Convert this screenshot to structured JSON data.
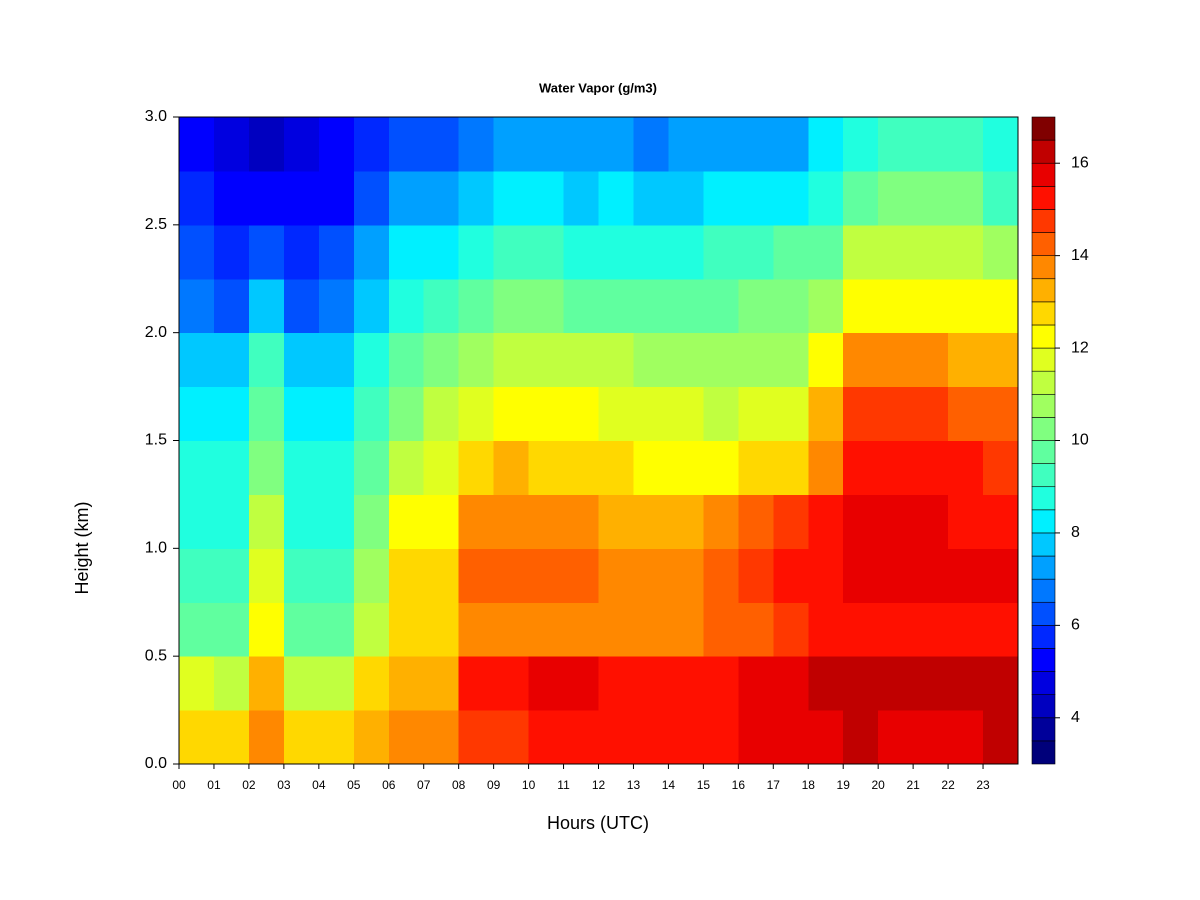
{
  "chart_data": {
    "type": "heatmap",
    "title": "Water Vapor (g/m3)",
    "xlabel": "Hours (UTC)",
    "ylabel": "Height (km)",
    "x": [
      0.5,
      1.5,
      2.5,
      3.5,
      4.5,
      5.5,
      6.5,
      7.5,
      8.5,
      9.5,
      10.5,
      11.5,
      12.5,
      13.5,
      14.5,
      15.5,
      16.5,
      17.5,
      18.5,
      19.5,
      20.5,
      21.5,
      22.5,
      23.5
    ],
    "y": [
      0.125,
      0.375,
      0.625,
      0.875,
      1.125,
      1.375,
      1.625,
      1.875,
      2.125,
      2.375,
      2.625,
      2.875
    ],
    "values": [
      [
        12.5,
        12.5,
        13.5,
        12.5,
        12.5,
        13,
        13.5,
        13.5,
        14.5,
        14.5,
        15,
        15,
        15,
        15,
        15,
        15,
        15.5,
        15.5,
        15.5,
        16,
        15.5,
        15.5,
        15.5,
        16
      ],
      [
        11.5,
        11,
        13,
        11,
        11,
        12.5,
        13,
        13,
        15,
        15,
        15.5,
        15.5,
        15,
        15,
        15,
        15,
        15.5,
        15.5,
        16,
        16,
        16,
        16,
        16,
        16
      ],
      [
        9.5,
        9.5,
        12,
        9.5,
        9.5,
        11,
        12.5,
        12.5,
        13.5,
        13.5,
        13.5,
        13.5,
        13.5,
        13.5,
        13.5,
        14,
        14,
        14.5,
        15,
        15,
        15,
        15,
        15,
        15
      ],
      [
        9,
        9,
        11.5,
        9,
        9,
        10.5,
        12.5,
        12.5,
        14,
        14,
        14,
        14,
        13.5,
        13.5,
        13.5,
        14,
        14.5,
        15,
        15,
        15.5,
        15.5,
        15.5,
        15.5,
        15.5
      ],
      [
        8.5,
        8.5,
        11,
        8.5,
        8.5,
        10,
        12,
        12,
        13.5,
        13.5,
        13.5,
        13.5,
        13,
        13,
        13,
        13.5,
        14,
        14.5,
        15,
        15.5,
        15.5,
        15.5,
        15,
        15
      ],
      [
        8.5,
        8.5,
        10,
        8.5,
        8.5,
        9.5,
        11,
        11.5,
        12.5,
        13,
        12.5,
        12.5,
        12.5,
        12,
        12,
        12,
        12.5,
        12.5,
        13.5,
        15,
        15,
        15,
        15,
        14.5
      ],
      [
        8,
        8,
        9.5,
        8,
        8,
        9,
        10,
        11,
        11.5,
        12,
        12,
        12,
        11.5,
        11.5,
        11.5,
        11,
        11.5,
        11.5,
        13,
        14.5,
        14.5,
        14.5,
        14,
        14
      ],
      [
        7.5,
        7.5,
        9,
        7.5,
        7.5,
        8.5,
        9.5,
        10,
        10.5,
        11,
        11,
        11,
        11,
        10.5,
        10.5,
        10.5,
        10.5,
        10.5,
        12,
        13.5,
        13.5,
        13.5,
        13,
        13
      ],
      [
        6.5,
        6,
        7.5,
        6,
        6.5,
        7.5,
        8.5,
        9,
        9.5,
        10,
        10,
        9.5,
        9.5,
        9.5,
        9.5,
        9.5,
        10,
        10,
        10.5,
        12,
        12,
        12,
        12,
        12
      ],
      [
        6,
        5.5,
        6,
        5.5,
        6,
        7,
        8,
        8,
        8.5,
        9,
        9,
        8.5,
        8.5,
        8.5,
        8.5,
        9,
        9,
        9.5,
        9.5,
        11,
        11,
        11,
        11,
        10.5
      ],
      [
        5.5,
        5,
        5,
        5,
        5,
        6,
        7,
        7,
        7.5,
        8,
        8,
        7.5,
        8,
        7.5,
        7.5,
        8,
        8,
        8,
        8.5,
        9.5,
        10,
        10,
        10,
        9
      ],
      [
        5,
        4.5,
        4,
        4.5,
        5,
        5.5,
        6,
        6,
        6.5,
        7,
        7,
        7,
        7,
        6.5,
        7,
        7,
        7,
        7,
        8,
        8.5,
        9,
        9,
        9,
        8.5
      ]
    ],
    "xlim": [
      0,
      24
    ],
    "ylim": [
      0,
      3
    ],
    "xticks": [
      {
        "value": 0,
        "label": "00"
      },
      {
        "value": 1,
        "label": "01"
      },
      {
        "value": 2,
        "label": "02"
      },
      {
        "value": 3,
        "label": "03"
      },
      {
        "value": 4,
        "label": "04"
      },
      {
        "value": 5,
        "label": "05"
      },
      {
        "value": 6,
        "label": "06"
      },
      {
        "value": 7,
        "label": "07"
      },
      {
        "value": 8,
        "label": "08"
      },
      {
        "value": 9,
        "label": "09"
      },
      10,
      11,
      12,
      13,
      14,
      15,
      16,
      17,
      18,
      19,
      20,
      21,
      22,
      23
    ],
    "yticks": [
      {
        "value": 0,
        "label": "0.0"
      },
      0.5,
      {
        "value": 1,
        "label": "1.0"
      },
      1.5,
      {
        "value": 2,
        "label": "2.0"
      },
      2.5,
      {
        "value": 3,
        "label": "3.0"
      }
    ],
    "clim": [
      3,
      17
    ],
    "clevel_step": 0.5,
    "colorbar_ticks": [
      4,
      6,
      8,
      10,
      12,
      14,
      16
    ],
    "colors": [
      "#00007a",
      "#00009a",
      "#0000c0",
      "#0000e0",
      "#0000ff",
      "#0028ff",
      "#0050ff",
      "#0078ff",
      "#00a0ff",
      "#00c8ff",
      "#00f0ff",
      "#20ffdf",
      "#40ffbf",
      "#60ff9f",
      "#80ff80",
      "#a0ff60",
      "#c0ff40",
      "#e0ff20",
      "#ffff00",
      "#ffd800",
      "#ffb000",
      "#ff8800",
      "#ff6000",
      "#ff3800",
      "#ff1000",
      "#e80000",
      "#c00000",
      "#800000"
    ]
  }
}
